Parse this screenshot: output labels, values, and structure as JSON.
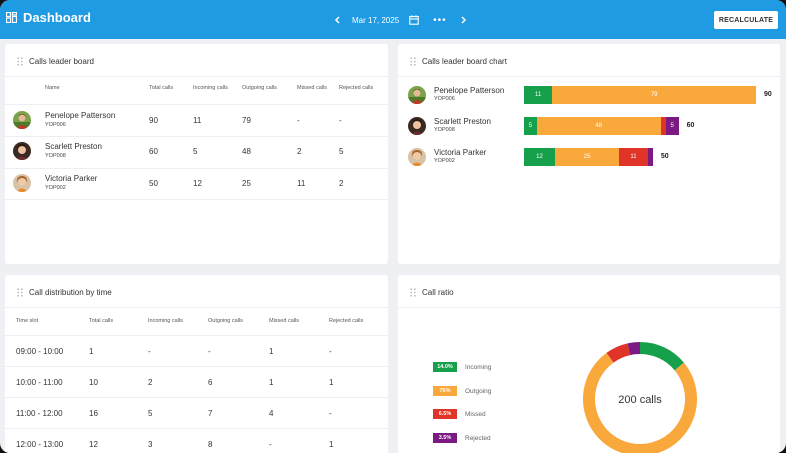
{
  "app": {
    "title": "Dashboard"
  },
  "header": {
    "date": "Mar 17, 2025",
    "more": "•••",
    "recalculate_label": "RECALCULATE"
  },
  "colors": {
    "incoming": "#17a04c",
    "outgoing": "#f9a83b",
    "missed": "#e03428",
    "rejected": "#7b1a82",
    "accent": "#1e9be3"
  },
  "leaderboard": {
    "title": "Calls leader board",
    "columns": [
      "Name",
      "Total calls",
      "Incoming calls",
      "Outgoing calls",
      "Missed calls",
      "Rejected calls"
    ],
    "rows": [
      {
        "name": "Penelope Patterson",
        "id": "YOP006",
        "total": "90",
        "incoming": "11",
        "outgoing": "79",
        "missed": "-",
        "rejected": "-"
      },
      {
        "name": "Scarlett Preston",
        "id": "YOP008",
        "total": "60",
        "incoming": "5",
        "outgoing": "48",
        "missed": "2",
        "rejected": "5"
      },
      {
        "name": "Victoria Parker",
        "id": "YOP002",
        "total": "50",
        "incoming": "12",
        "outgoing": "25",
        "missed": "11",
        "rejected": "2"
      }
    ]
  },
  "leaderboard_chart": {
    "title": "Calls leader board chart",
    "rows": [
      {
        "name": "Penelope Patterson",
        "id": "YOP006",
        "total": "90",
        "segments": [
          {
            "value": 11,
            "label": "11",
            "color": "#17a04c"
          },
          {
            "value": 79,
            "label": "79",
            "color": "#f9a83b"
          }
        ]
      },
      {
        "name": "Scarlett Preston",
        "id": "YOP008",
        "total": "60",
        "segments": [
          {
            "value": 5,
            "label": "5",
            "color": "#17a04c"
          },
          {
            "value": 48,
            "label": "48",
            "color": "#f9a83b"
          },
          {
            "value": 2,
            "label": "",
            "color": "#e03428"
          },
          {
            "value": 5,
            "label": "5",
            "color": "#7b1a82"
          }
        ]
      },
      {
        "name": "Victoria Parker",
        "id": "YOP002",
        "total": "50",
        "segments": [
          {
            "value": 12,
            "label": "12",
            "color": "#17a04c"
          },
          {
            "value": 25,
            "label": "25",
            "color": "#f9a83b"
          },
          {
            "value": 11,
            "label": "11",
            "color": "#e03428"
          },
          {
            "value": 2,
            "label": "",
            "color": "#7b1a82"
          }
        ]
      }
    ]
  },
  "distribution": {
    "title": "Call distribution by time",
    "columns": [
      "Time slot",
      "Total calls",
      "Incoming calls",
      "Outgoing calls",
      "Missed calls",
      "Rejected calls"
    ],
    "rows": [
      {
        "slot": "09:00 - 10:00",
        "total": "1",
        "incoming": "-",
        "outgoing": "-",
        "missed": "1",
        "rejected": "-"
      },
      {
        "slot": "10:00 - 11:00",
        "total": "10",
        "incoming": "2",
        "outgoing": "6",
        "missed": "1",
        "rejected": "1"
      },
      {
        "slot": "11:00 - 12:00",
        "total": "16",
        "incoming": "5",
        "outgoing": "7",
        "missed": "4",
        "rejected": "-"
      },
      {
        "slot": "12:00 - 13:00",
        "total": "12",
        "incoming": "3",
        "outgoing": "8",
        "missed": "-",
        "rejected": "1"
      }
    ]
  },
  "call_ratio": {
    "title": "Call ratio",
    "center_label": "200 calls",
    "legend": [
      {
        "pct": "14.0%",
        "label": "Incoming",
        "color": "#17a04c"
      },
      {
        "pct": "76%",
        "label": "Outgoing",
        "color": "#f9a83b"
      },
      {
        "pct": "6.5%",
        "label": "Missed",
        "color": "#e03428"
      },
      {
        "pct": "3.5%",
        "label": "Rejected",
        "color": "#7b1a82"
      }
    ]
  },
  "chart_data": {
    "type": "pie",
    "categories": [
      "Incoming",
      "Outgoing",
      "Missed",
      "Rejected"
    ],
    "values": [
      14.0,
      76,
      6.5,
      3.5
    ],
    "title": "Call ratio"
  }
}
